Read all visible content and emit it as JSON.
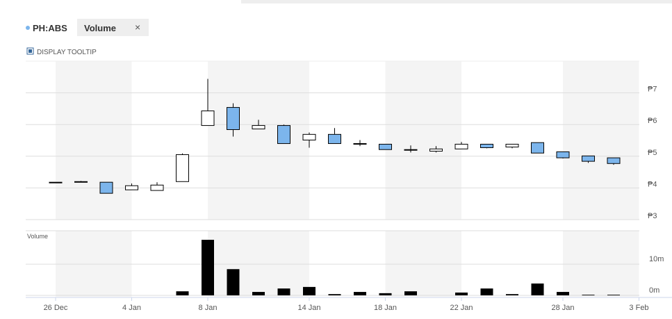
{
  "header": {
    "symbol": "PH:ABS",
    "tab": "Volume",
    "close": "×",
    "tooltip_toggle": "DISPLAY TOOLTIP"
  },
  "chart_data": {
    "type": "candlestick",
    "categories": [
      "26 Dec",
      null,
      null,
      "4 Jan",
      null,
      null,
      "8 Jan",
      null,
      null,
      null,
      "14 Jan",
      null,
      null,
      "18 Jan",
      null,
      null,
      "22 Jan",
      null,
      null,
      null,
      "28 Jan",
      null,
      null,
      "3 Feb"
    ],
    "open": [
      4.18,
      4.2,
      4.18,
      3.94,
      3.92,
      4.2,
      5.97,
      6.54,
      5.86,
      5.97,
      5.51,
      5.69,
      5.4,
      5.38,
      5.21,
      5.16,
      5.23,
      5.38,
      5.29,
      5.43,
      5.14,
      5.01,
      4.95,
      null
    ],
    "high": [
      4.18,
      4.22,
      4.18,
      4.14,
      4.18,
      5.09,
      7.44,
      6.67,
      6.15,
      6.0,
      5.75,
      5.89,
      5.51,
      5.38,
      5.34,
      5.32,
      5.45,
      5.38,
      5.38,
      5.43,
      5.14,
      5.01,
      4.95,
      null
    ],
    "low": [
      4.18,
      4.18,
      3.83,
      3.94,
      3.92,
      4.2,
      5.97,
      5.62,
      5.86,
      5.4,
      5.27,
      5.4,
      5.32,
      5.21,
      5.12,
      5.12,
      5.23,
      5.25,
      5.25,
      5.1,
      4.93,
      4.79,
      4.73,
      null
    ],
    "close": [
      4.18,
      4.2,
      3.83,
      4.07,
      4.09,
      5.05,
      6.43,
      5.84,
      5.97,
      5.4,
      5.69,
      5.4,
      5.4,
      5.21,
      5.21,
      5.23,
      5.38,
      5.27,
      5.38,
      5.1,
      4.95,
      4.84,
      4.77,
      null
    ],
    "up_color": "#ffffff",
    "down_color": "#7cb5ec",
    "ylim": [
      3,
      8
    ],
    "yticks": [
      {
        "value": 3,
        "label": "₱3"
      },
      {
        "value": 4,
        "label": "₱4"
      },
      {
        "value": 5,
        "label": "₱5"
      },
      {
        "value": 6,
        "label": "₱6"
      },
      {
        "value": 7,
        "label": "₱7"
      }
    ],
    "grid": true,
    "volume": {
      "title": "Volume",
      "color": "#000000",
      "values": [
        0,
        0,
        0,
        0,
        0,
        1300000,
        17800000,
        8400000,
        1100000,
        2200000,
        2700000,
        400000,
        1100000,
        700000,
        1300000,
        0,
        900000,
        2200000,
        400000,
        3800000,
        1100000,
        200000,
        200000,
        null
      ],
      "ylim": [
        0,
        20700000
      ],
      "yticks": [
        {
          "value": 0,
          "label": "0m"
        },
        {
          "value": 10000000,
          "label": "10m"
        }
      ]
    }
  }
}
